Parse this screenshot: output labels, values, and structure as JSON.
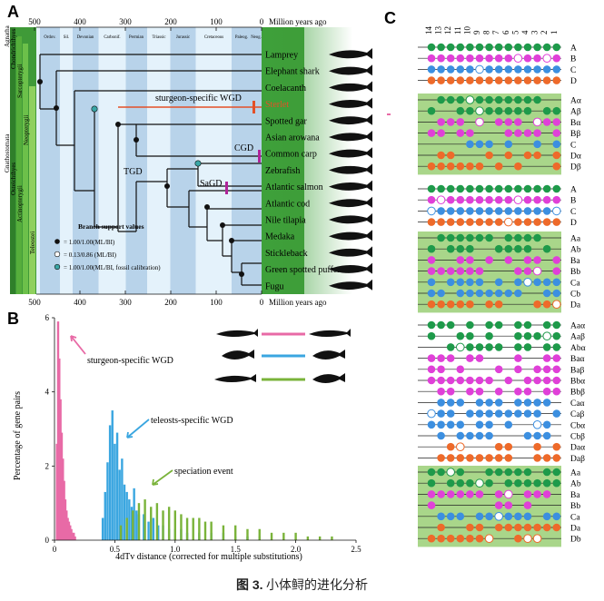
{
  "panels": {
    "a": "A",
    "b": "B",
    "c": "C"
  },
  "caption": {
    "fig": "图 3.",
    "text": "小体鲟的进化分析"
  },
  "panel_a": {
    "axis_unit": "Million years ago",
    "ticks": [
      "500",
      "400",
      "300",
      "200",
      "100",
      "0"
    ],
    "periods": [
      "Ordov.",
      "Sil.",
      "Devonian",
      "Carbonif.",
      "Permian",
      "Triassic",
      "Jurassic",
      "Cretaceous",
      "Paleog.",
      "Neog."
    ],
    "clades": [
      "Agnatha",
      "Chondrichthyes",
      "Sarcopterygii",
      "Gnathostomata",
      "Osteichthyes",
      "Actinopterygii",
      "Neopterygii",
      "Teleostei"
    ],
    "taxa": [
      "Lamprey",
      "Elephant shark",
      "Coelacanth",
      "Sterlet",
      "Spotted gar",
      "Asian arowana",
      "Common carp",
      "Zebrafish",
      "Atlantic salmon",
      "Atlantic cod",
      "Nile tilapia",
      "Medaka",
      "Stickleback",
      "Green spotted puffer",
      "Fugu"
    ],
    "events": {
      "sturgeon": "sturgeon-specific WGD",
      "tgd": "TGD",
      "cgd": "CGD",
      "sagd": "SaGD"
    },
    "legend_title": "Branch support values",
    "legend": [
      "= 1.00/1.00(ML/BI)",
      "= 0.13/0.86 (ML/BI)",
      "= 1.00/1.00(ML/BI, fossil calibration)"
    ]
  },
  "panel_b": {
    "ylabel": "Percentage of gene pairs",
    "xlabel": "4dTv distance (corrected for multiple substitutions)",
    "annotations": {
      "sturgeon": "sturgeon-specific WGD",
      "teleost": "teleosts-specific WGD",
      "speciation": "speciation event"
    }
  },
  "panel_c": {
    "columns": [
      "14",
      "13",
      "12",
      "11",
      "10",
      "9",
      "8",
      "7",
      "6",
      "5",
      "4",
      "3",
      "2",
      "1"
    ],
    "groups": [
      [
        "A",
        "B",
        "C",
        "D"
      ],
      [
        "Aα",
        "Aβ",
        "Bα",
        "Bβ",
        "C",
        "Dα",
        "Dβ"
      ],
      [
        "A",
        "B",
        "C",
        "D"
      ],
      [
        "Aa",
        "Ab",
        "Ba",
        "Bb",
        "Ca",
        "Cb",
        "Da"
      ],
      [
        "Aaα",
        "Aaβ",
        "Abα",
        "Baα",
        "Baβ",
        "Bbα",
        "Bbβ",
        "Caα",
        "Caβ",
        "Cbα",
        "Cbβ",
        "Daα",
        "Daβ"
      ],
      [
        "Aa",
        "Ab",
        "Ba",
        "Bb",
        "Ca",
        "Da",
        "Db"
      ]
    ]
  },
  "chart_data": {
    "type": "bar",
    "title": "",
    "xlabel": "4dTv distance (corrected for multiple substitutions)",
    "ylabel": "Percentage of gene pairs",
    "xlim": [
      0,
      2.5
    ],
    "ylim": [
      0,
      6
    ],
    "xticks": [
      "0",
      "0.5",
      "1.0",
      "1.5",
      "2.0",
      "2.5"
    ],
    "yticks": [
      "0",
      "2",
      "4",
      "6"
    ],
    "series": [
      {
        "name": "sturgeon-specific WGD",
        "color": "#e86aa6",
        "x": [
          0.02,
          0.03,
          0.04,
          0.05,
          0.06,
          0.07,
          0.08,
          0.09,
          0.1,
          0.11,
          0.12,
          0.13,
          0.14,
          0.15,
          0.16,
          0.17
        ],
        "y": [
          2.6,
          5.9,
          4.9,
          3.8,
          2.9,
          2.2,
          1.6,
          1.1,
          0.8,
          0.6,
          0.5,
          0.4,
          0.3,
          0.2,
          0.2,
          0.1
        ]
      },
      {
        "name": "teleosts-specific WGD",
        "color": "#3aa6e0",
        "x": [
          0.4,
          0.42,
          0.44,
          0.46,
          0.48,
          0.5,
          0.52,
          0.54,
          0.56,
          0.58,
          0.6,
          0.62,
          0.64,
          0.66,
          0.68,
          0.7,
          0.74,
          0.78,
          0.82,
          0.86,
          0.9,
          0.95,
          1.0,
          1.05,
          1.1,
          1.2,
          1.3,
          1.4,
          1.5,
          1.6,
          1.7
        ],
        "y": [
          0.6,
          1.3,
          2.1,
          3.1,
          3.5,
          2.6,
          2.9,
          1.9,
          2.2,
          1.5,
          1.3,
          1.1,
          0.9,
          1.4,
          0.8,
          0.7,
          0.7,
          0.5,
          0.6,
          0.4,
          0.4,
          0.3,
          0.3,
          0.3,
          0.2,
          0.2,
          0.2,
          0.2,
          0.1,
          0.1,
          0.1
        ]
      },
      {
        "name": "speciation event",
        "color": "#7ab33a",
        "x": [
          0.55,
          0.6,
          0.65,
          0.7,
          0.75,
          0.8,
          0.85,
          0.9,
          0.95,
          1.0,
          1.05,
          1.1,
          1.15,
          1.2,
          1.25,
          1.3,
          1.4,
          1.5,
          1.6,
          1.7,
          1.8,
          1.9,
          2.0,
          2.1,
          2.2,
          2.3
        ],
        "y": [
          0.4,
          0.6,
          0.8,
          1.0,
          1.1,
          0.9,
          1.0,
          0.8,
          0.9,
          0.8,
          0.7,
          0.6,
          0.6,
          0.6,
          0.5,
          0.5,
          0.4,
          0.4,
          0.3,
          0.3,
          0.2,
          0.2,
          0.2,
          0.1,
          0.1,
          0.1
        ]
      }
    ]
  }
}
